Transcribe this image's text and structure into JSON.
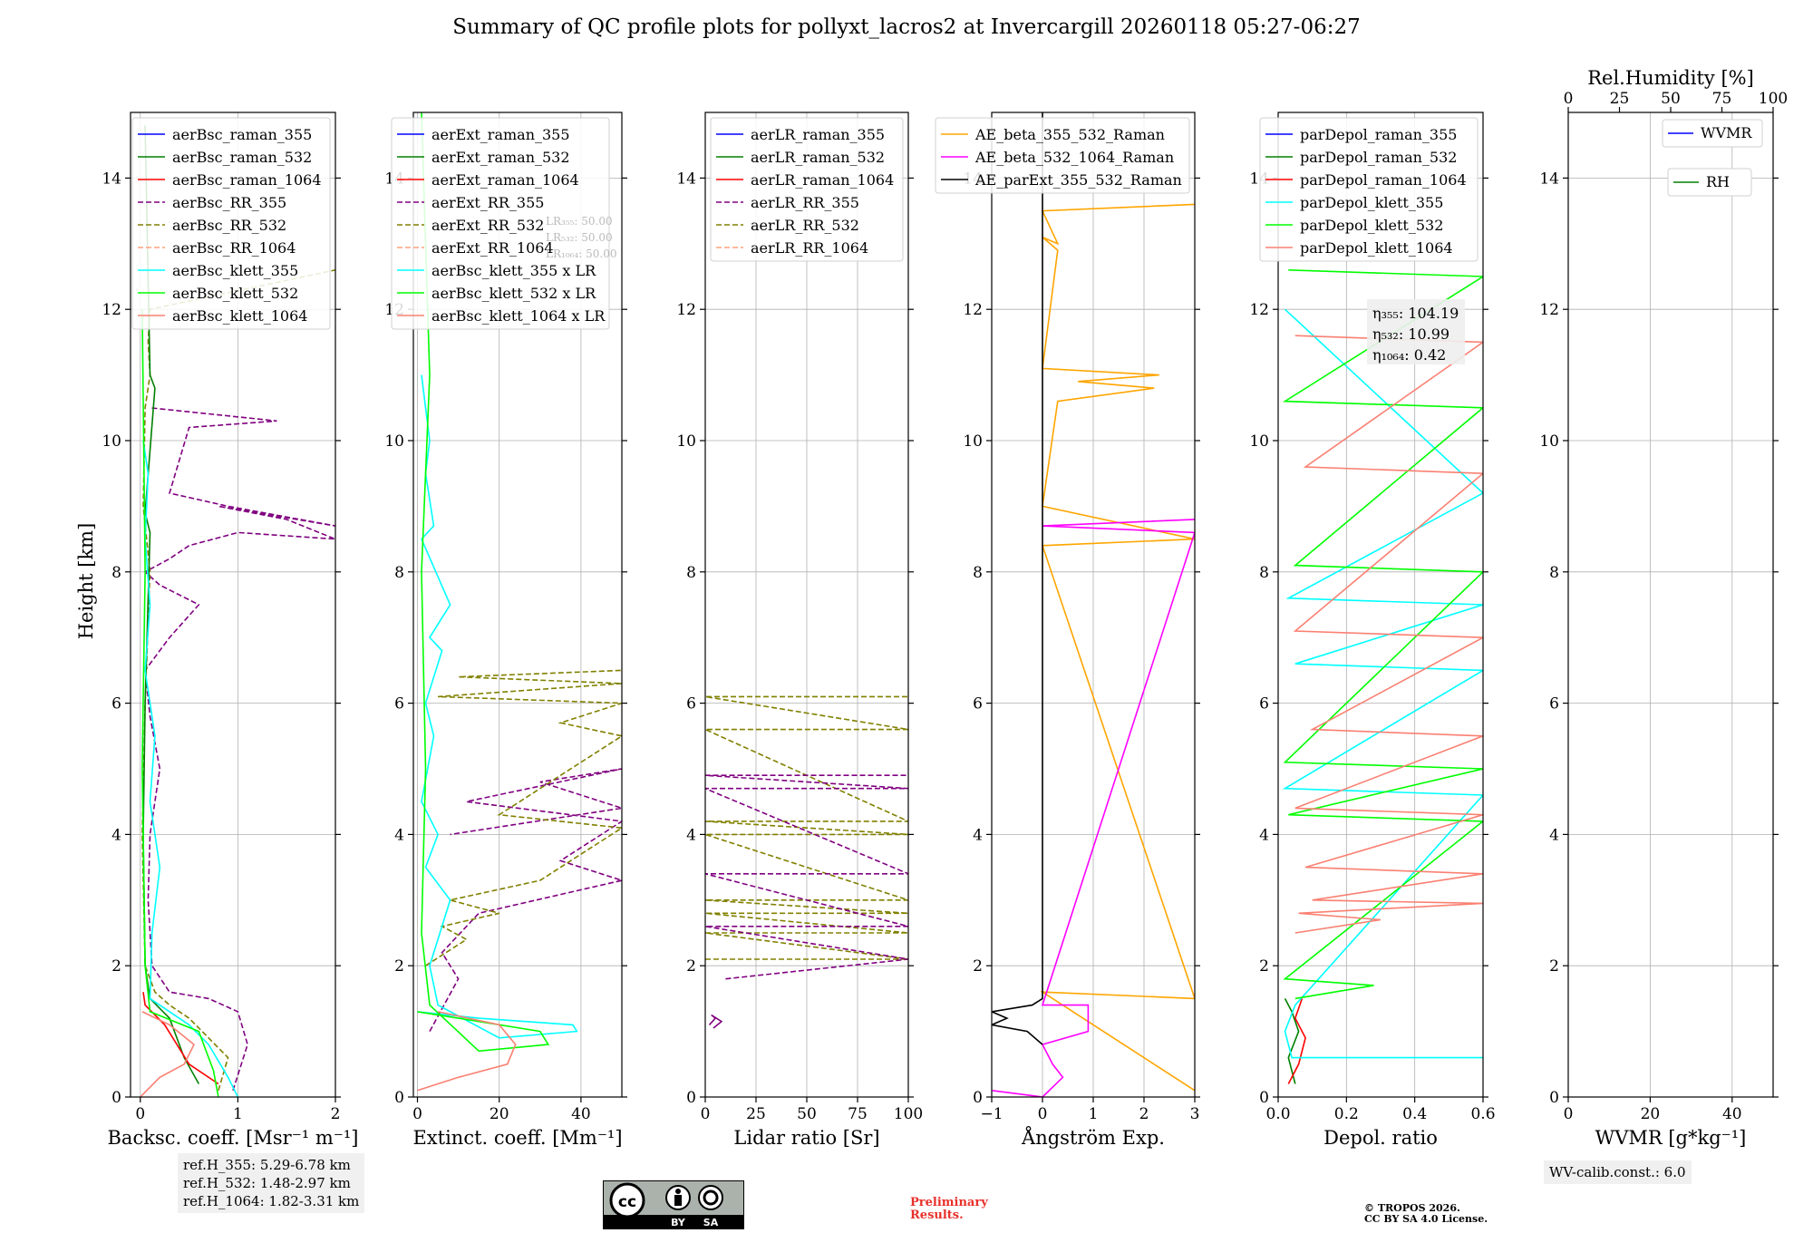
{
  "title": "Summary of QC profile plots for pollyxt_lacros2 at Invercargill 20260118 05:27-06:27",
  "colors": {
    "raman_355": "#0000ff",
    "raman_532": "#008000",
    "raman_1064": "#ff0000",
    "rr_355": "#800080",
    "rr_532": "#808000",
    "rr_1064": "#ffa07a",
    "klett_355": "#00ffff",
    "klett_532": "#00ff00",
    "klett_1064": "#fa8072",
    "ae1": "#ffa500",
    "ae2": "#ff00ff",
    "ae3": "#000000",
    "wvmr": "#0000ff",
    "rh": "#008000"
  },
  "height_axis": {
    "label": "Height [km]",
    "ticks": [
      "0",
      "2",
      "4",
      "6",
      "8",
      "10",
      "12",
      "14"
    ],
    "range": [
      0,
      15
    ]
  },
  "chart_data": [
    {
      "type": "line",
      "id": "backscatter",
      "xlabel": "Backsc. coeff. [Msr⁻¹ m⁻¹]",
      "xlim": [
        -0.1,
        2
      ],
      "ylim": [
        0,
        15
      ],
      "xticks": [
        0,
        1,
        2
      ],
      "xticklabels": [
        "0",
        "1",
        "2"
      ],
      "legend": [
        "aerBsc_raman_355",
        "aerBsc_raman_532",
        "aerBsc_raman_1064",
        "aerBsc_RR_355",
        "aerBsc_RR_532",
        "aerBsc_RR_1064",
        "aerBsc_klett_355",
        "aerBsc_klett_532",
        "aerBsc_klett_1064"
      ],
      "series": [
        {
          "name": "aerBsc_RR_355",
          "style": "rr_355",
          "dash": true,
          "x": [
            0.95,
            1.1,
            1.0,
            0.7,
            0.3,
            0.12,
            0.08,
            0.1,
            0.2,
            0.1,
            0.05,
            0.3,
            0.6,
            0.2,
            0.05,
            0.3,
            0.5,
            1.0,
            2.0,
            1.5,
            0.8,
            2.0,
            0.9,
            0.3,
            0.5,
            1.4,
            0.1
          ],
          "y": [
            0.1,
            0.8,
            1.3,
            1.5,
            1.6,
            2.0,
            3.0,
            4.0,
            5.0,
            5.8,
            6.5,
            7.0,
            7.5,
            7.8,
            8.0,
            8.2,
            8.4,
            8.6,
            8.5,
            8.8,
            9.0,
            8.7,
            9.0,
            9.2,
            10.2,
            10.3,
            10.5
          ]
        },
        {
          "name": "aerBsc_RR_532",
          "style": "rr_532",
          "dash": true,
          "x": [
            0.8,
            0.9,
            0.5,
            0.3,
            0.15,
            0.05,
            0.02,
            0.05,
            0.1,
            0.03,
            0.05,
            0.1,
            0.08,
            0.1,
            2.0
          ],
          "y": [
            0.1,
            0.6,
            1.2,
            1.4,
            1.6,
            2.0,
            4.0,
            6.0,
            8.0,
            9.0,
            10.5,
            11.0,
            11.5,
            12.0,
            12.6
          ]
        },
        {
          "name": "aerBsc_raman_532",
          "style": "raman_532",
          "dash": false,
          "x": [
            0.6,
            0.45,
            0.3,
            0.1,
            0.05,
            0.03,
            0.05,
            0.1,
            0.05,
            0.15,
            0.1,
            0.05
          ],
          "y": [
            0.2,
            0.6,
            1.2,
            1.5,
            2.0,
            4.0,
            6.0,
            8.6,
            8.9,
            10.8,
            11.0,
            14.8
          ]
        },
        {
          "name": "aerBsc_raman_1064",
          "style": "raman_1064",
          "dash": false,
          "x": [
            0.8,
            0.5,
            0.25,
            0.05,
            0.03
          ],
          "y": [
            0.2,
            0.5,
            1.1,
            1.4,
            1.6
          ]
        },
        {
          "name": "aerBsc_klett_355",
          "style": "klett_355",
          "dash": false,
          "x": [
            1.0,
            0.9,
            0.7,
            0.5,
            0.1,
            0.12,
            0.2,
            0.1,
            0.15,
            0.05,
            0.1,
            0.05,
            0.08,
            0.03
          ],
          "y": [
            0.0,
            0.3,
            0.8,
            1.1,
            1.5,
            2.5,
            3.5,
            4.5,
            5.5,
            6.5,
            7.5,
            8.5,
            9.5,
            10.0
          ]
        },
        {
          "name": "aerBsc_klett_532",
          "style": "klett_532",
          "dash": false,
          "x": [
            0.8,
            0.75,
            0.6,
            0.1,
            0.05,
            0.02,
            0.05,
            0.02
          ],
          "y": [
            0.0,
            0.4,
            1.0,
            1.3,
            2.0,
            5.0,
            8.0,
            12.0
          ]
        },
        {
          "name": "aerBsc_klett_1064",
          "style": "klett_1064",
          "dash": false,
          "x": [
            0.0,
            0.2,
            0.45,
            0.55,
            0.3,
            0.02
          ],
          "y": [
            0.0,
            0.3,
            0.5,
            0.8,
            1.1,
            1.3
          ]
        }
      ]
    },
    {
      "type": "line",
      "id": "extinction",
      "xlabel": "Extinct. coeff. [Mm⁻¹]",
      "xlim": [
        -1,
        50
      ],
      "ylim": [
        0,
        15
      ],
      "xticks": [
        0,
        20,
        40
      ],
      "xticklabels": [
        "0",
        "20",
        "40"
      ],
      "legend": [
        "aerExt_raman_355",
        "aerExt_raman_532",
        "aerExt_raman_1064",
        "aerExt_RR_355",
        "aerExt_RR_532",
        "aerExt_RR_1064",
        "aerBsc_klett_355 x LR",
        "aerBsc_klett_532 x LR",
        "aerBsc_klett_1064 x LR"
      ],
      "lr_notes": [
        "LR₃₅₅: 50.00",
        "LR₅₃₂: 50.00",
        "LR₁₀₆₄: 50.00"
      ],
      "series": [
        {
          "name": "aerExt_RR_355",
          "style": "rr_355",
          "dash": true,
          "x": [
            3,
            10,
            6,
            15,
            50,
            35,
            50,
            12,
            50,
            30,
            50,
            8
          ],
          "y": [
            1.0,
            1.8,
            2.2,
            2.8,
            3.3,
            3.6,
            4.2,
            4.5,
            5.0,
            4.8,
            4.4,
            4.0
          ]
        },
        {
          "name": "aerExt_RR_532",
          "style": "rr_532",
          "dash": true,
          "x": [
            2,
            12,
            6,
            20,
            8,
            30,
            50,
            20,
            50,
            35,
            50,
            5,
            50,
            10,
            50
          ],
          "y": [
            2.0,
            2.4,
            2.6,
            2.8,
            3.0,
            3.3,
            4.1,
            4.3,
            5.5,
            5.7,
            6.0,
            6.1,
            6.3,
            6.4,
            6.5
          ]
        },
        {
          "name": "aerBsc_klett_355 x LR",
          "style": "klett_355",
          "dash": false,
          "x": [
            0,
            15,
            38,
            39,
            20,
            5,
            3,
            8,
            2,
            5,
            1,
            4,
            2,
            6,
            3,
            8,
            1,
            4,
            2,
            3,
            1
          ],
          "y": [
            1.3,
            1.2,
            1.1,
            1.0,
            0.9,
            1.4,
            2.0,
            3.0,
            3.5,
            4.0,
            4.5,
            5.5,
            6.0,
            6.8,
            7.0,
            7.5,
            8.5,
            8.7,
            9.5,
            10.0,
            11.0
          ]
        },
        {
          "name": "aerBsc_klett_532 x LR",
          "style": "klett_532",
          "dash": false,
          "x": [
            0,
            10,
            30,
            32,
            15,
            3,
            1,
            2,
            1,
            3,
            1
          ],
          "y": [
            1.3,
            1.2,
            1.0,
            0.8,
            0.7,
            1.4,
            2.5,
            5.0,
            8.0,
            11.0,
            15.0
          ]
        },
        {
          "name": "aerBsc_klett_1064 x LR",
          "style": "klett_1064",
          "dash": false,
          "x": [
            0,
            10,
            22,
            24,
            20,
            5
          ],
          "y": [
            0.1,
            0.3,
            0.5,
            0.8,
            1.1,
            1.3
          ]
        }
      ]
    },
    {
      "type": "line",
      "id": "lidar_ratio",
      "xlabel": "Lidar ratio [Sr]",
      "xlim": [
        0,
        100
      ],
      "ylim": [
        0,
        15
      ],
      "xticks": [
        0,
        25,
        50,
        75,
        100
      ],
      "xticklabels": [
        "0",
        "25",
        "50",
        "75",
        "100"
      ],
      "legend": [
        "aerLR_raman_355",
        "aerLR_raman_532",
        "aerLR_raman_1064",
        "aerLR_RR_355",
        "aerLR_RR_532",
        "aerLR_RR_1064"
      ],
      "series": [
        {
          "name": "aerLR_RR_532",
          "style": "rr_532",
          "dash": true,
          "x": [
            0,
            100,
            0,
            100,
            0,
            100,
            0,
            100,
            0,
            100,
            0,
            100,
            0,
            100,
            0,
            100
          ],
          "y": [
            2.1,
            2.1,
            2.5,
            2.5,
            2.8,
            2.8,
            3.0,
            3.0,
            4.0,
            4.0,
            4.2,
            4.2,
            5.6,
            5.6,
            6.1,
            6.1
          ]
        },
        {
          "name": "aerLR_RR_355",
          "style": "rr_355",
          "dash": true,
          "x": [
            10,
            100,
            0,
            100,
            0,
            100,
            0,
            100,
            0,
            100
          ],
          "y": [
            1.8,
            2.1,
            2.6,
            2.6,
            3.4,
            3.4,
            4.7,
            4.7,
            4.9,
            4.9
          ]
        },
        {
          "name": "aerLR_raman_355",
          "style": "rr_355",
          "dash": false,
          "x": [
            2,
            5,
            3,
            8,
            4
          ],
          "y": [
            1.1,
            1.2,
            1.25,
            1.15,
            1.05
          ]
        }
      ]
    },
    {
      "type": "line",
      "id": "angstrom",
      "xlabel": "Ångström Exp.",
      "xlim": [
        -1,
        3
      ],
      "ylim": [
        0,
        15
      ],
      "xticks": [
        -1,
        0,
        1,
        2,
        3
      ],
      "xticklabels": [
        "−1",
        "0",
        "1",
        "2",
        "3"
      ],
      "legend": [
        "AE_beta_355_532_Raman",
        "AE_beta_532_1064_Raman",
        "AE_parExt_355_532_Raman"
      ],
      "series": [
        {
          "name": "AE_beta_355_532_Raman",
          "style": "ae1",
          "dash": false,
          "x": [
            3,
            0,
            3,
            0,
            3,
            0,
            0.3,
            2.2,
            0.7,
            2.3,
            0,
            0.3,
            0,
            0.3,
            0,
            3
          ],
          "y": [
            0.1,
            1.6,
            1.5,
            8.4,
            8.5,
            9.0,
            10.6,
            10.8,
            10.9,
            11.0,
            11.1,
            12.9,
            13.1,
            13.0,
            13.5,
            13.6
          ]
        },
        {
          "name": "AE_beta_532_1064_Raman",
          "style": "ae2",
          "dash": false,
          "x": [
            -1,
            0,
            0.4,
            0.2,
            0,
            0.9,
            0.9,
            0,
            3,
            0,
            3
          ],
          "y": [
            0.1,
            0,
            0.3,
            0.5,
            0.8,
            1.0,
            1.4,
            1.4,
            8.6,
            8.7,
            8.8
          ]
        },
        {
          "name": "AE_parExt_355_532_Raman",
          "style": "ae3",
          "dash": false,
          "x": [
            0,
            -0.3,
            -1,
            -0.7,
            -1,
            -0.2,
            0,
            0,
            0
          ],
          "y": [
            0.8,
            1.0,
            1.1,
            1.2,
            1.3,
            1.4,
            1.5,
            14.0,
            15.0
          ]
        }
      ]
    },
    {
      "type": "line",
      "id": "depol",
      "xlabel": "Depol. ratio",
      "xlim": [
        0,
        0.6
      ],
      "ylim": [
        0,
        15
      ],
      "xticks": [
        0,
        0.2,
        0.4,
        0.6
      ],
      "xticklabels": [
        "0.0",
        "0.2",
        "0.4",
        "0.6"
      ],
      "legend": [
        "parDepol_raman_355",
        "parDepol_raman_532",
        "parDepol_raman_1064",
        "parDepol_klett_355",
        "parDepol_klett_532",
        "parDepol_klett_1064"
      ],
      "eta_notes": [
        "η₃₅₅: 104.19",
        "η₅₃₂: 10.99",
        "η₁₀₆₄: 0.42"
      ],
      "series": [
        {
          "name": "parDepol_raman_532",
          "style": "raman_532",
          "dash": false,
          "x": [
            0.05,
            0.03,
            0.06,
            0.04,
            0.02
          ],
          "y": [
            0.2,
            0.6,
            1.0,
            1.3,
            1.5
          ]
        },
        {
          "name": "parDepol_raman_1064",
          "style": "raman_1064",
          "dash": false,
          "x": [
            0.03,
            0.06,
            0.08,
            0.05,
            0.07
          ],
          "y": [
            0.2,
            0.5,
            0.9,
            1.2,
            1.5
          ]
        },
        {
          "name": "parDepol_klett_355",
          "style": "klett_355",
          "dash": false,
          "x": [
            0.6,
            0.04,
            0.02,
            0.05,
            0.6,
            0.02,
            0.6,
            0.05,
            0.6,
            0.03,
            0.6,
            0.02
          ],
          "y": [
            0.6,
            0.6,
            1.0,
            1.4,
            4.6,
            4.7,
            6.5,
            6.6,
            7.5,
            7.6,
            9.2,
            12.0
          ]
        },
        {
          "name": "parDepol_klett_532",
          "style": "klett_532",
          "dash": false,
          "x": [
            0.05,
            0.28,
            0.02,
            0.6,
            0.03,
            0.6,
            0.02,
            0.6,
            0.05,
            0.6,
            0.02,
            0.6,
            0.03
          ],
          "y": [
            1.5,
            1.7,
            1.8,
            4.2,
            4.3,
            5.0,
            5.1,
            8.0,
            8.1,
            10.5,
            10.6,
            12.5,
            12.6
          ]
        },
        {
          "name": "parDepol_klett_1064",
          "style": "klett_1064",
          "dash": false,
          "x": [
            0.05,
            0.3,
            0.06,
            0.6,
            0.1,
            0.6,
            0.08,
            0.6,
            0.05,
            0.6,
            0.1,
            0.6,
            0.05,
            0.6,
            0.08,
            0.6,
            0.05
          ],
          "y": [
            2.5,
            2.7,
            2.8,
            2.95,
            3.0,
            3.4,
            3.5,
            4.3,
            4.4,
            5.5,
            5.6,
            7.0,
            7.1,
            9.5,
            9.6,
            11.5,
            11.6
          ]
        }
      ]
    },
    {
      "type": "line",
      "id": "wvmr",
      "xlabel": "WVMR [g*kg⁻¹]",
      "xlim": [
        0,
        50
      ],
      "ylim": [
        0,
        15
      ],
      "xticks": [
        0,
        20,
        40
      ],
      "xticklabels": [
        "0",
        "20",
        "40"
      ],
      "top_label": "Rel.Humidity [%]",
      "top_xlim": [
        0,
        100
      ],
      "top_ticks": [
        0,
        25,
        50,
        75,
        100
      ],
      "top_ticklabels": [
        "0",
        "25",
        "50",
        "75",
        "100"
      ],
      "legend": [
        "WVMR",
        "RH"
      ],
      "series": []
    }
  ],
  "footer": {
    "ref_heights": [
      "ref.H_355: 5.29-6.78 km",
      "ref.H_532: 1.48-2.97 km",
      "ref.H_1064: 1.82-3.31 km"
    ],
    "license_badge": {
      "cc": "cc",
      "by": "BY",
      "sa": "SA"
    },
    "preliminary": [
      "Preliminary",
      "Results."
    ],
    "copyright": [
      "© TROPOS 2026.",
      "CC BY SA 4.0 License."
    ],
    "wv_calib": "WV-calib.const.: 6.0"
  }
}
